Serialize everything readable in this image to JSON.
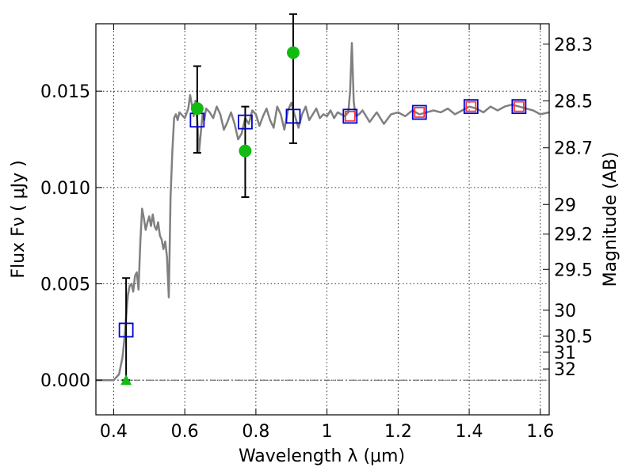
{
  "chart_data": {
    "type": "line",
    "xlabel": "Wavelength  λ (μm)",
    "ylabel": "Flux  Fν  ( μJy )",
    "y2label": "Magnitude (AB)",
    "xlim": [
      0.35,
      1.625
    ],
    "ylim": [
      -0.0018,
      0.0185
    ],
    "grid": true,
    "x_ticks": [
      {
        "v": 0.4,
        "label": "0.4"
      },
      {
        "v": 0.6,
        "label": "0.6"
      },
      {
        "v": 0.8,
        "label": "0.8"
      },
      {
        "v": 1.0,
        "label": "1"
      },
      {
        "v": 1.2,
        "label": "1.2"
      },
      {
        "v": 1.4,
        "label": "1.4"
      },
      {
        "v": 1.6,
        "label": "1.6"
      }
    ],
    "y_ticks": [
      {
        "v": 0.0,
        "label": "0.000"
      },
      {
        "v": 0.005,
        "label": "0.005"
      },
      {
        "v": 0.01,
        "label": "0.010"
      },
      {
        "v": 0.015,
        "label": "0.015"
      }
    ],
    "mag_ticks": [
      {
        "v": 0.01744,
        "label": "28.3"
      },
      {
        "v": 0.0145,
        "label": "28.5"
      },
      {
        "v": 0.01206,
        "label": "28.7"
      },
      {
        "v": 0.00912,
        "label": "29"
      },
      {
        "v": 0.00758,
        "label": "29.2"
      },
      {
        "v": 0.00575,
        "label": "29.5"
      },
      {
        "v": 0.00363,
        "label": "30"
      },
      {
        "v": 0.00229,
        "label": "30.5"
      },
      {
        "v": 0.00145,
        "label": "31"
      },
      {
        "v": 0.00058,
        "label": "32"
      }
    ],
    "series": [
      {
        "style": "line",
        "color": "#808080",
        "x": [
          0.35,
          0.4,
          0.415,
          0.425,
          0.43,
          0.435,
          0.44,
          0.445,
          0.45,
          0.455,
          0.46,
          0.465,
          0.47,
          0.475,
          0.48,
          0.485,
          0.49,
          0.495,
          0.5,
          0.505,
          0.51,
          0.515,
          0.52,
          0.525,
          0.53,
          0.535,
          0.54,
          0.545,
          0.55,
          0.555,
          0.56,
          0.565,
          0.57,
          0.575,
          0.58,
          0.585,
          0.59,
          0.6,
          0.61,
          0.615,
          0.62,
          0.625,
          0.63,
          0.635,
          0.64,
          0.645,
          0.65,
          0.655,
          0.66,
          0.67,
          0.68,
          0.69,
          0.7,
          0.71,
          0.72,
          0.73,
          0.74,
          0.75,
          0.76,
          0.77,
          0.78,
          0.79,
          0.8,
          0.81,
          0.82,
          0.83,
          0.84,
          0.85,
          0.86,
          0.87,
          0.88,
          0.89,
          0.9,
          0.91,
          0.92,
          0.93,
          0.94,
          0.95,
          0.96,
          0.97,
          0.98,
          0.99,
          1.0,
          1.01,
          1.02,
          1.03,
          1.04,
          1.05,
          1.06,
          1.065,
          1.07,
          1.075,
          1.08,
          1.09,
          1.1,
          1.12,
          1.14,
          1.16,
          1.18,
          1.2,
          1.22,
          1.24,
          1.26,
          1.28,
          1.3,
          1.32,
          1.34,
          1.36,
          1.38,
          1.4,
          1.42,
          1.44,
          1.46,
          1.48,
          1.5,
          1.52,
          1.54,
          1.56,
          1.58,
          1.6,
          1.625
        ],
        "y": [
          0.0,
          0.0,
          0.0003,
          0.0012,
          0.0021,
          0.0033,
          0.0044,
          0.0049,
          0.005,
          0.0046,
          0.0054,
          0.0056,
          0.0047,
          0.0072,
          0.0089,
          0.0084,
          0.0078,
          0.0082,
          0.0085,
          0.008,
          0.0086,
          0.008,
          0.0078,
          0.0082,
          0.0075,
          0.0073,
          0.0068,
          0.0072,
          0.0064,
          0.0043,
          0.0095,
          0.0119,
          0.0136,
          0.0138,
          0.0135,
          0.0139,
          0.0138,
          0.0136,
          0.0141,
          0.0148,
          0.0143,
          0.0137,
          0.0145,
          0.0135,
          0.0118,
          0.0128,
          0.0138,
          0.0135,
          0.0141,
          0.0139,
          0.0136,
          0.0142,
          0.0138,
          0.013,
          0.0134,
          0.0139,
          0.0133,
          0.0125,
          0.0128,
          0.0136,
          0.0133,
          0.014,
          0.0138,
          0.0132,
          0.0137,
          0.0141,
          0.0135,
          0.0131,
          0.0142,
          0.0138,
          0.013,
          0.014,
          0.0144,
          0.0137,
          0.0131,
          0.0138,
          0.0142,
          0.0135,
          0.0138,
          0.0141,
          0.0136,
          0.0138,
          0.0137,
          0.014,
          0.0136,
          0.0139,
          0.0138,
          0.0137,
          0.0139,
          0.015,
          0.0175,
          0.0145,
          0.0137,
          0.0138,
          0.014,
          0.0134,
          0.0139,
          0.0133,
          0.0138,
          0.0139,
          0.0137,
          0.014,
          0.0138,
          0.0139,
          0.014,
          0.0139,
          0.0141,
          0.0138,
          0.014,
          0.0142,
          0.0141,
          0.0139,
          0.0142,
          0.014,
          0.0142,
          0.0143,
          0.0142,
          0.0141,
          0.014,
          0.0138,
          0.0139
        ]
      },
      {
        "style": "open-square",
        "color": "#0000cc",
        "x": [
          0.435,
          0.635,
          0.77,
          0.905,
          1.065,
          1.26,
          1.405,
          1.54
        ],
        "y": [
          0.0026,
          0.0135,
          0.0134,
          0.0137,
          0.0137,
          0.0139,
          0.0142,
          0.0142
        ]
      },
      {
        "style": "open-square",
        "color": "#ff3333",
        "size": 12,
        "x": [
          1.065,
          1.26,
          1.405,
          1.54
        ],
        "y": [
          0.0137,
          0.0139,
          0.0142,
          0.0142
        ]
      },
      {
        "style": "filled-circle",
        "color": "#11bb11",
        "x": [
          0.635,
          0.77,
          0.905
        ],
        "y": [
          0.0141,
          0.0119,
          0.017
        ],
        "yerr_low": [
          0.0118,
          0.0095,
          0.0123
        ],
        "yerr_high": [
          0.0163,
          0.0142,
          0.019
        ]
      },
      {
        "style": "triangle",
        "color": "#11bb11",
        "x": [
          0.435
        ],
        "y": [
          0.0
        ],
        "yerr_low": [
          0.0
        ],
        "yerr_high": [
          0.0053
        ]
      }
    ]
  }
}
